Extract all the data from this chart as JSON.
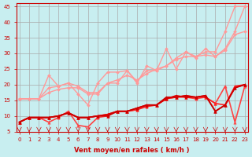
{
  "xlabel": "Vent moyen/en rafales ( km/h )",
  "background_color": "#c8eef0",
  "grid_color": "#aaaaaa",
  "x_ticks": [
    0,
    1,
    2,
    3,
    4,
    5,
    6,
    7,
    8,
    9,
    10,
    11,
    12,
    13,
    14,
    15,
    16,
    17,
    18,
    19,
    20,
    21,
    22,
    23
  ],
  "ylim": [
    5,
    46
  ],
  "xlim": [
    0,
    23
  ],
  "yticks": [
    5,
    10,
    15,
    20,
    25,
    30,
    35,
    40,
    45
  ],
  "series": [
    {
      "color": "#ff9999",
      "lw": 1.0,
      "marker": "D",
      "markersize": 2,
      "data_x": [
        0,
        1,
        2,
        3,
        4,
        5,
        6,
        7,
        8,
        9,
        10,
        11,
        12,
        13,
        14,
        15,
        16,
        17,
        18,
        19,
        20,
        21,
        22,
        23
      ],
      "data_y": [
        15.5,
        15.5,
        15.5,
        19,
        19.5,
        20.5,
        17,
        13.5,
        20.5,
        24,
        24,
        24.5,
        20.5,
        26,
        24.5,
        31.5,
        25,
        30.5,
        29,
        30.5,
        30.5,
        37,
        45,
        45
      ]
    },
    {
      "color": "#ff9999",
      "lw": 1.0,
      "marker": "D",
      "markersize": 2,
      "data_x": [
        0,
        1,
        2,
        3,
        4,
        5,
        6,
        7,
        8,
        9,
        10,
        11,
        12,
        13,
        14,
        15,
        16,
        17,
        18,
        19,
        20,
        21,
        22,
        23
      ],
      "data_y": [
        15.5,
        15.5,
        15.5,
        23,
        19.5,
        20.5,
        19.5,
        17.5,
        17.5,
        20.5,
        20.5,
        24.5,
        21,
        24.5,
        24.5,
        26,
        28.5,
        30.5,
        28.5,
        31.5,
        29,
        31.5,
        37,
        45
      ]
    },
    {
      "color": "#ff9999",
      "lw": 1.0,
      "marker": "D",
      "markersize": 2,
      "data_x": [
        0,
        1,
        2,
        3,
        4,
        5,
        6,
        7,
        8,
        9,
        10,
        11,
        12,
        13,
        14,
        15,
        16,
        17,
        18,
        19,
        20,
        21,
        22,
        23
      ],
      "data_y": [
        15.5,
        15.5,
        15.5,
        17.5,
        18.5,
        19,
        19,
        17,
        17,
        20.5,
        21.5,
        23,
        21.5,
        23.5,
        25,
        26,
        28,
        29,
        29,
        29.5,
        29,
        31,
        36,
        37
      ]
    },
    {
      "color": "#ff4444",
      "lw": 1.2,
      "marker": "^",
      "markersize": 2.5,
      "data_x": [
        0,
        1,
        2,
        3,
        4,
        5,
        6,
        7,
        8,
        9,
        10,
        11,
        12,
        13,
        14,
        15,
        16,
        17,
        18,
        19,
        20,
        21,
        22,
        23
      ],
      "data_y": [
        8,
        9.5,
        9.5,
        8,
        9.5,
        11.5,
        7,
        6.5,
        9.5,
        10,
        11.5,
        11.5,
        12,
        13.5,
        13.5,
        15.5,
        16,
        16,
        15.5,
        16,
        14,
        19.5,
        8,
        19.5
      ]
    },
    {
      "color": "#ff2222",
      "lw": 1.2,
      "marker": "^",
      "markersize": 2.5,
      "data_x": [
        0,
        1,
        2,
        3,
        4,
        5,
        6,
        7,
        8,
        9,
        10,
        11,
        12,
        13,
        14,
        15,
        16,
        17,
        18,
        19,
        20,
        21,
        22,
        23
      ],
      "data_y": [
        8,
        9.5,
        9.5,
        9.5,
        10,
        11,
        9.5,
        9.5,
        10,
        10.5,
        11.5,
        11.5,
        12,
        13,
        13.5,
        15.5,
        16,
        16.5,
        16,
        16,
        14,
        13.5,
        19.5,
        20
      ]
    },
    {
      "color": "#dd0000",
      "lw": 1.2,
      "marker": "^",
      "markersize": 2.5,
      "data_x": [
        0,
        1,
        2,
        3,
        4,
        5,
        6,
        7,
        8,
        9,
        10,
        11,
        12,
        13,
        14,
        15,
        16,
        17,
        18,
        19,
        20,
        21,
        22,
        23
      ],
      "data_y": [
        8,
        9.5,
        9.5,
        9.5,
        10,
        11,
        9.5,
        9.5,
        10,
        10.5,
        11.5,
        11.5,
        12.5,
        13.5,
        13.5,
        15.5,
        16.5,
        16,
        16,
        16.5,
        11.5,
        13.5,
        19,
        20
      ]
    },
    {
      "color": "#cc0000",
      "lw": 1.2,
      "marker": "^",
      "markersize": 2.5,
      "data_x": [
        0,
        1,
        2,
        3,
        4,
        5,
        6,
        7,
        8,
        9,
        10,
        11,
        12,
        13,
        14,
        15,
        16,
        17,
        18,
        19,
        20,
        21,
        22,
        23
      ],
      "data_y": [
        8,
        9.5,
        9.5,
        9.5,
        10,
        11,
        9.5,
        9.5,
        10,
        10,
        11.5,
        11.5,
        12.5,
        13.5,
        13.5,
        16,
        16,
        16.5,
        16,
        16.5,
        11.5,
        13.5,
        19,
        20
      ]
    }
  ]
}
